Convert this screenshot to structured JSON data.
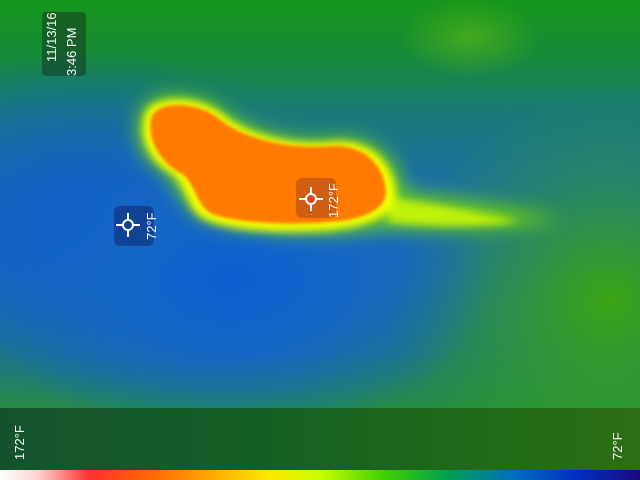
{
  "timestamp": {
    "date": "11/13/16",
    "time": "3:46 PM"
  },
  "spot_markers": [
    {
      "name": "cold-spot",
      "temperature": "72°F",
      "icon": "crosshair-icon",
      "color": "#1a3f8f"
    },
    {
      "name": "hot-spot",
      "temperature": "172°F",
      "icon": "crosshair-icon",
      "color": "#ff2a2a"
    }
  ],
  "scale": {
    "max_label": "172°F",
    "min_label": "72°F",
    "palette": [
      "#ffffff",
      "#ff3030",
      "#ff8a00",
      "#ffe600",
      "#40d000",
      "#00a050",
      "#0070c0",
      "#1a0a80"
    ]
  },
  "colors": {
    "hot": "#ff7a00",
    "warm": "#f2ff00",
    "background_cool": "#1566c8",
    "background_mid": "#1a9a2a"
  }
}
